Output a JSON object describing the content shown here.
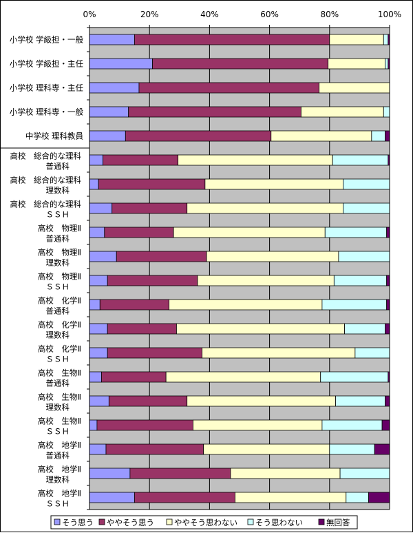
{
  "chart_data": {
    "type": "bar",
    "orientation": "horizontal",
    "stacked": "percent",
    "xlim": [
      0,
      100
    ],
    "x_ticks": [
      "0%",
      "20%",
      "40%",
      "60%",
      "80%",
      "100%"
    ],
    "grid": true,
    "legend_position": "bottom",
    "categories": [
      [
        "小学校 学級担・一般"
      ],
      [
        "小学校 学級担・主任"
      ],
      [
        "小学校 理科専・主任"
      ],
      [
        "小学校 理科専・一般"
      ],
      [
        "中学校 理科教員"
      ],
      [
        "高校　総合的な理科",
        "普通科"
      ],
      [
        "高校　総合的な理科",
        "理数科"
      ],
      [
        "高校　総合的な理科",
        "ＳＳＨ"
      ],
      [
        "高校　物理Ⅱ",
        "普通科"
      ],
      [
        "高校　物理Ⅱ",
        "理数科"
      ],
      [
        "高校　物理Ⅱ",
        "ＳＳＨ"
      ],
      [
        "高校　化学Ⅱ",
        "普通科"
      ],
      [
        "高校　化学Ⅱ",
        "理数科"
      ],
      [
        "高校　化学Ⅱ",
        "ＳＳＨ"
      ],
      [
        "高校　生物Ⅱ",
        "普通科"
      ],
      [
        "高校　生物Ⅱ",
        "理数科"
      ],
      [
        "高校　生物Ⅱ",
        "ＳＳＨ"
      ],
      [
        "高校　地学Ⅱ",
        "普通科"
      ],
      [
        "高校　地学Ⅱ",
        "理数科"
      ],
      [
        "高校　地学Ⅱ",
        "ＳＳＨ"
      ]
    ],
    "series": [
      {
        "name": "そう思う",
        "color": "#9999FF",
        "values": [
          15,
          21,
          16.5,
          13,
          12,
          4.5,
          3,
          7.5,
          5,
          9,
          6,
          3.5,
          6,
          6,
          4,
          6.5,
          2.5,
          5.5,
          13.5,
          15
        ]
      },
      {
        "name": "ややそう思う",
        "color": "#993366",
        "values": [
          65,
          58.5,
          60,
          57.5,
          48.5,
          25,
          35.5,
          25,
          23,
          30,
          30,
          23,
          23,
          31.5,
          21.5,
          26,
          32,
          32.5,
          33.5,
          33.5
        ]
      },
      {
        "name": "ややそう思わない",
        "color": "#FFFFCC",
        "values": [
          18,
          19,
          23.5,
          27.5,
          33.5,
          51.5,
          46,
          52,
          50.5,
          44,
          45.5,
          51,
          56,
          51,
          51.5,
          49.5,
          43,
          42,
          36.5,
          37
        ]
      },
      {
        "name": "そう思わない",
        "color": "#CCFFFF",
        "values": [
          1.5,
          1,
          0,
          2,
          4.5,
          18.5,
          15.5,
          15.5,
          20.5,
          17,
          17.5,
          21.5,
          13.5,
          11.5,
          22.5,
          16.5,
          20,
          15,
          16.5,
          7.5
        ]
      },
      {
        "name": "無回答",
        "color": "#660066",
        "values": [
          0.5,
          0.5,
          0,
          0,
          1.5,
          0.5,
          0,
          0,
          1,
          0,
          1,
          1,
          1.5,
          0,
          0.5,
          1.5,
          2.5,
          5,
          0,
          7
        ]
      }
    ]
  }
}
